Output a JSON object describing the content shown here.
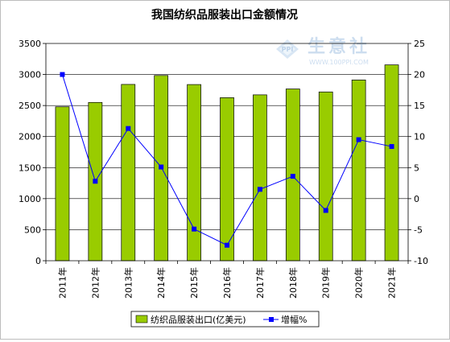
{
  "chart_data": {
    "type": "bar",
    "title": "我国纺织品服装出口金额情况",
    "categories": [
      "2011年",
      "2012年",
      "2013年",
      "2014年",
      "2015年",
      "2016年",
      "2017年",
      "2018年",
      "2019年",
      "2020年",
      "2021年"
    ],
    "series": [
      {
        "name": "纺织品服装出口(亿美元)",
        "type": "bar",
        "axis": "left",
        "color": "#99cc00",
        "values": [
          2479,
          2550,
          2840,
          2984,
          2838,
          2627,
          2672,
          2767,
          2719,
          2912,
          3155
        ]
      },
      {
        "name": "增幅%",
        "type": "line",
        "axis": "right",
        "color": "#0000ff",
        "values": [
          20.0,
          2.8,
          11.3,
          5.1,
          -4.9,
          -7.5,
          1.5,
          3.6,
          -1.9,
          9.5,
          8.4
        ]
      }
    ],
    "y_left": {
      "min": 0,
      "max": 3500,
      "step": 500
    },
    "y_right": {
      "min": -10,
      "max": 25,
      "step": 5
    },
    "grid": true,
    "legend_position": "bottom"
  },
  "watermark": {
    "text": "生意社",
    "url": "WWW.100PPI.COM",
    "logo_letters": "PPI"
  }
}
